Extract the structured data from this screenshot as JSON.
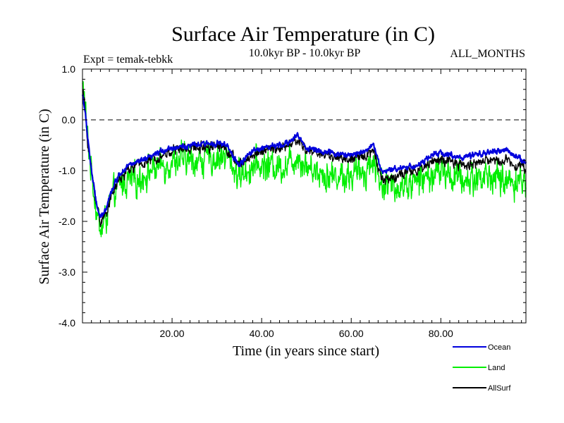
{
  "chart_data": {
    "type": "line",
    "title": "Surface Air Temperature (in C)",
    "subtitle_left": "Expt = temak-tebkk",
    "subtitle_center": "10.0kyr BP - 10.0kyr BP",
    "subtitle_right": "ALL_MONTHS",
    "xlabel": "Time (in years since start)",
    "ylabel": "Surface Air Temperature (in C)",
    "xlim": [
      0,
      99
    ],
    "ylim": [
      -4.0,
      1.0
    ],
    "x_ticks": [
      {
        "value": 20,
        "label": "20.00"
      },
      {
        "value": 40,
        "label": "40.00"
      },
      {
        "value": 60,
        "label": "60.00"
      },
      {
        "value": 80,
        "label": "80.00"
      }
    ],
    "y_ticks": [
      {
        "value": 1.0,
        "label": "1.0"
      },
      {
        "value": 0.0,
        "label": "0.0"
      },
      {
        "value": -1.0,
        "label": "-1.0"
      },
      {
        "value": -2.0,
        "label": "-2.0"
      },
      {
        "value": -3.0,
        "label": "-3.0"
      },
      {
        "value": -4.0,
        "label": "-4.0"
      }
    ],
    "zero_line": {
      "value": 0.0,
      "style": "dashed"
    },
    "samples_per_year": 12,
    "series": [
      {
        "name": "Land",
        "color": "#00ee00",
        "anchors": [
          [
            0,
            0.7
          ],
          [
            0.5,
            0.4
          ],
          [
            1,
            -0.3
          ],
          [
            2,
            -1.0
          ],
          [
            3,
            -1.7
          ],
          [
            4,
            -2.2
          ],
          [
            5,
            -2.0
          ],
          [
            6,
            -1.7
          ],
          [
            8,
            -1.3
          ],
          [
            10,
            -1.2
          ],
          [
            12,
            -1.2
          ],
          [
            15,
            -1.0
          ],
          [
            18,
            -0.9
          ],
          [
            20,
            -0.8
          ],
          [
            25,
            -0.8
          ],
          [
            30,
            -0.75
          ],
          [
            32,
            -0.7
          ],
          [
            35,
            -1.1
          ],
          [
            38,
            -0.9
          ],
          [
            40,
            -0.9
          ],
          [
            45,
            -0.9
          ],
          [
            48,
            -0.7
          ],
          [
            50,
            -0.9
          ],
          [
            55,
            -1.1
          ],
          [
            60,
            -1.1
          ],
          [
            63,
            -1.0
          ],
          [
            65,
            -0.8
          ],
          [
            67,
            -1.3
          ],
          [
            70,
            -1.3
          ],
          [
            75,
            -1.2
          ],
          [
            78,
            -1.1
          ],
          [
            80,
            -1.0
          ],
          [
            85,
            -1.2
          ],
          [
            90,
            -1.1
          ],
          [
            95,
            -1.2
          ],
          [
            99,
            -1.2
          ]
        ],
        "noise_amplitude": 0.45
      },
      {
        "name": "AllSurf",
        "color": "#000000",
        "anchors": [
          [
            0,
            0.6
          ],
          [
            0.5,
            0.3
          ],
          [
            1,
            -0.3
          ],
          [
            2,
            -1.0
          ],
          [
            3,
            -1.6
          ],
          [
            4,
            -2.0
          ],
          [
            5,
            -1.9
          ],
          [
            6,
            -1.6
          ],
          [
            8,
            -1.2
          ],
          [
            10,
            -1.0
          ],
          [
            12,
            -0.9
          ],
          [
            15,
            -0.8
          ],
          [
            18,
            -0.7
          ],
          [
            20,
            -0.6
          ],
          [
            25,
            -0.55
          ],
          [
            30,
            -0.5
          ],
          [
            32,
            -0.55
          ],
          [
            35,
            -0.9
          ],
          [
            38,
            -0.7
          ],
          [
            40,
            -0.6
          ],
          [
            45,
            -0.55
          ],
          [
            48,
            -0.4
          ],
          [
            50,
            -0.6
          ],
          [
            55,
            -0.7
          ],
          [
            60,
            -0.8
          ],
          [
            63,
            -0.7
          ],
          [
            65,
            -0.6
          ],
          [
            67,
            -1.2
          ],
          [
            70,
            -1.1
          ],
          [
            75,
            -1.0
          ],
          [
            78,
            -0.8
          ],
          [
            80,
            -0.8
          ],
          [
            85,
            -0.9
          ],
          [
            90,
            -0.8
          ],
          [
            95,
            -0.8
          ],
          [
            99,
            -0.95
          ]
        ],
        "noise_amplitude": 0.15
      },
      {
        "name": "Ocean",
        "color": "#0000dd",
        "anchors": [
          [
            0,
            0.5
          ],
          [
            0.5,
            0.2
          ],
          [
            1,
            -0.2
          ],
          [
            2,
            -1.0
          ],
          [
            3,
            -1.6
          ],
          [
            4,
            -1.95
          ],
          [
            5,
            -1.8
          ],
          [
            6,
            -1.5
          ],
          [
            8,
            -1.1
          ],
          [
            10,
            -0.9
          ],
          [
            12,
            -0.85
          ],
          [
            15,
            -0.75
          ],
          [
            18,
            -0.6
          ],
          [
            20,
            -0.55
          ],
          [
            25,
            -0.5
          ],
          [
            30,
            -0.45
          ],
          [
            32,
            -0.5
          ],
          [
            35,
            -0.9
          ],
          [
            38,
            -0.6
          ],
          [
            40,
            -0.55
          ],
          [
            45,
            -0.5
          ],
          [
            48,
            -0.3
          ],
          [
            50,
            -0.55
          ],
          [
            55,
            -0.65
          ],
          [
            60,
            -0.7
          ],
          [
            63,
            -0.6
          ],
          [
            65,
            -0.5
          ],
          [
            67,
            -1.05
          ],
          [
            70,
            -0.95
          ],
          [
            75,
            -0.9
          ],
          [
            78,
            -0.7
          ],
          [
            80,
            -0.65
          ],
          [
            85,
            -0.75
          ],
          [
            90,
            -0.65
          ],
          [
            95,
            -0.6
          ],
          [
            99,
            -0.85
          ]
        ],
        "noise_amplitude": 0.08
      }
    ],
    "legend": {
      "placement": "bottom-right",
      "entries": [
        "Ocean",
        "Land",
        "AllSurf"
      ]
    }
  }
}
